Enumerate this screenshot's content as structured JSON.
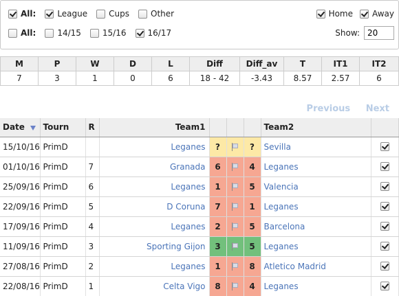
{
  "filters": {
    "row1": [
      {
        "label": "All:",
        "checked": true,
        "bold": true
      },
      {
        "label": "League",
        "checked": true
      },
      {
        "label": "Cups",
        "checked": false
      },
      {
        "label": "Other",
        "checked": false
      }
    ],
    "row2": [
      {
        "label": "All:",
        "checked": false,
        "bold": true
      },
      {
        "label": "14/15",
        "checked": false
      },
      {
        "label": "15/16",
        "checked": false
      },
      {
        "label": "16/17",
        "checked": true
      }
    ],
    "home_label": "Home",
    "away_label": "Away",
    "show_label": "Show:",
    "show_value": "20"
  },
  "stats": {
    "headers": [
      "M",
      "P",
      "W",
      "D",
      "L",
      "Diff",
      "Diff_av",
      "T",
      "IT1",
      "IT2"
    ],
    "values": [
      "7",
      "3",
      "1",
      "0",
      "6",
      "18 - 42",
      "-3.43",
      "8.57",
      "2.57",
      "6"
    ]
  },
  "pager": {
    "previous": "Previous",
    "next": "Next"
  },
  "matches": {
    "headers": {
      "date": "Date",
      "tourn": "Tourn",
      "round": "R",
      "team1": "Team1",
      "team2": "Team2"
    },
    "rows": [
      {
        "date": "15/10/16",
        "tourn": "PrimD",
        "round": "",
        "team1": "Leganes",
        "s1": "?",
        "s2": "?",
        "team2": "Sevilla",
        "result": "U"
      },
      {
        "date": "01/10/16",
        "tourn": "PrimD",
        "round": "7",
        "team1": "Granada",
        "s1": "6",
        "s2": "4",
        "team2": "Leganes",
        "result": "L"
      },
      {
        "date": "25/09/16",
        "tourn": "PrimD",
        "round": "6",
        "team1": "Leganes",
        "s1": "1",
        "s2": "5",
        "team2": "Valencia",
        "result": "L"
      },
      {
        "date": "22/09/16",
        "tourn": "PrimD",
        "round": "5",
        "team1": "D Coruna",
        "s1": "7",
        "s2": "1",
        "team2": "Leganes",
        "result": "L"
      },
      {
        "date": "17/09/16",
        "tourn": "PrimD",
        "round": "4",
        "team1": "Leganes",
        "s1": "2",
        "s2": "5",
        "team2": "Barcelona",
        "result": "L"
      },
      {
        "date": "11/09/16",
        "tourn": "PrimD",
        "round": "3",
        "team1": "Sporting Gijon",
        "s1": "3",
        "s2": "5",
        "team2": "Leganes",
        "result": "W"
      },
      {
        "date": "27/08/16",
        "tourn": "PrimD",
        "round": "2",
        "team1": "Leganes",
        "s1": "1",
        "s2": "8",
        "team2": "Atletico Madrid",
        "result": "L"
      },
      {
        "date": "22/08/16",
        "tourn": "PrimD",
        "round": "1",
        "team1": "Celta Vigo",
        "s1": "8",
        "s2": "4",
        "team2": "Leganes",
        "result": "L"
      }
    ]
  }
}
